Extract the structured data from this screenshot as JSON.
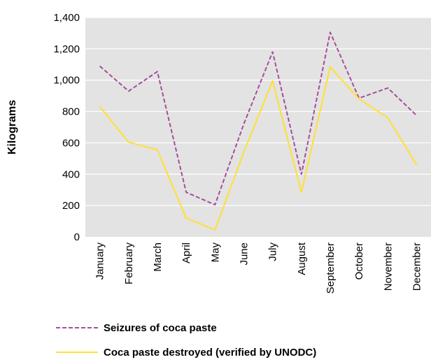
{
  "chart_data": {
    "type": "line",
    "ylabel": "Kilograms",
    "xlabel": "",
    "ylim": [
      0,
      1400
    ],
    "yticks": [
      0,
      200,
      400,
      600,
      800,
      1000,
      1200,
      1400
    ],
    "ytick_labels": [
      "0",
      "200",
      "400",
      "600",
      "800",
      "1,000",
      "1,200",
      "1,400"
    ],
    "categories": [
      "January",
      "February",
      "March",
      "April",
      "May",
      "June",
      "July",
      "August",
      "September",
      "October",
      "November",
      "December"
    ],
    "grid": true,
    "legend_position": "bottom",
    "series": [
      {
        "name": "Seizures of coca paste",
        "color": "#a64d9a",
        "dash": "dashed",
        "values": [
          1090,
          930,
          1055,
          285,
          205,
          720,
          1180,
          400,
          1305,
          885,
          950,
          775
        ]
      },
      {
        "name": "Coca paste destroyed (verified by UNODC)",
        "color": "#ffe033",
        "dash": "solid",
        "values": [
          830,
          605,
          555,
          120,
          45,
          540,
          995,
          285,
          1085,
          880,
          760,
          460
        ]
      }
    ],
    "plot_background": "#e3e3e3"
  }
}
